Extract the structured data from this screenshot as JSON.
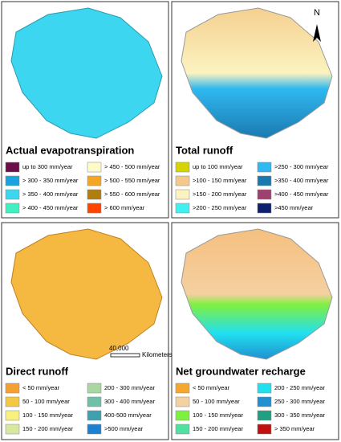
{
  "panels": [
    {
      "title": "Actual evapotranspiration",
      "legend": [
        {
          "label": "up to 300 mm/year",
          "color": "#6b0f4a"
        },
        {
          "label": "> 300 - 350 mm/year",
          "color": "#1aa3e0"
        },
        {
          "label": "> 350 - 400 mm/year",
          "color": "#3dd6f0"
        },
        {
          "label": "> 400 - 450 mm/year",
          "color": "#40f0c0"
        },
        {
          "label": "> 450 - 500 mm/year",
          "color": "#fdfbc8"
        },
        {
          "label": "> 500 - 550 mm/year",
          "color": "#f5a623"
        },
        {
          "label": "> 550 - 600 mm/year",
          "color": "#b07d10"
        },
        {
          "label": "> 600 mm/year",
          "color": "#ff4500"
        }
      ]
    },
    {
      "title": "Total runoff",
      "legend": [
        {
          "label": "up to 100 mm/year",
          "color": "#d4d400"
        },
        {
          "label": ">100 - 150 mm/year",
          "color": "#f5c98a"
        },
        {
          "label": ">150 - 200 mm/year",
          "color": "#fbf3c0"
        },
        {
          "label": ">200 - 250 mm/year",
          "color": "#40f0f0"
        },
        {
          "label": ">250 - 300 mm/year",
          "color": "#30b8f0"
        },
        {
          "label": ">350 - 400 mm/year",
          "color": "#1a7ab0"
        },
        {
          "label": ">400 - 450 mm/year",
          "color": "#a04070"
        },
        {
          "label": ">450 mm/year",
          "color": "#102070"
        }
      ]
    },
    {
      "title": "Direct runoff",
      "legend": [
        {
          "label": "< 50 mm/year",
          "color": "#f5a030"
        },
        {
          "label": "50 - 100 mm/year",
          "color": "#f5c842"
        },
        {
          "label": "100 - 150 mm/year",
          "color": "#f8f080"
        },
        {
          "label": "150 - 200 mm/year",
          "color": "#d8e8a0"
        },
        {
          "label": "200 - 300 mm/year",
          "color": "#a8d8a0"
        },
        {
          "label": "300 - 400 mm/year",
          "color": "#70c0a8"
        },
        {
          "label": "400-500 mm/year",
          "color": "#40a0b0"
        },
        {
          "label": ">500 mm/year",
          "color": "#2080d0"
        }
      ]
    },
    {
      "title": "Net groundwater recharge",
      "legend": [
        {
          "label": "< 50 mm/year",
          "color": "#f5a830"
        },
        {
          "label": "50 - 100 mm/year",
          "color": "#f5d0a0"
        },
        {
          "label": "100 - 150 mm/year",
          "color": "#80f040"
        },
        {
          "label": "150 - 200 mm/year",
          "color": "#50e0a0"
        },
        {
          "label": "200 - 250 mm/year",
          "color": "#20e0f0"
        },
        {
          "label": "250 - 300 mm/year",
          "color": "#2090d0"
        },
        {
          "label": "300 - 350 mm/year",
          "color": "#20a080"
        },
        {
          "label": "> 350 mm/year",
          "color": "#c01010"
        }
      ]
    }
  ],
  "north": "N",
  "scale": {
    "value": "40,000",
    "unit": "Kilometers"
  }
}
